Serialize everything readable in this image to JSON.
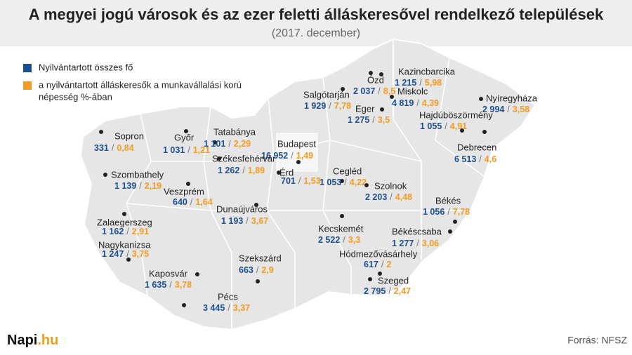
{
  "header": {
    "title": "A megyei jogú városok és az ezer feletti álláskeresővel rendelkező települések",
    "subtitle": "(2017. december)"
  },
  "legend": [
    {
      "label": [
        "Nyilvántartott összes fő"
      ],
      "color": "#1d4f91"
    },
    {
      "label": [
        "a nyilvántartott álláskeresők a munkavállalási korú",
        "népesség %-ában"
      ],
      "color": "#f39c22"
    }
  ],
  "separator": "/",
  "cities": [
    {
      "name": "Kazincbarcika",
      "count": "1 215",
      "share": "5,98"
    },
    {
      "name": "Ózd",
      "count": "2 037",
      "share": "8,5"
    },
    {
      "name": "Salgótarján",
      "count": "1 929",
      "share": "7,78"
    },
    {
      "name": "Miskolc",
      "count": "4 819",
      "share": "4,39"
    },
    {
      "name": "Nyíregyháza",
      "count": "2 994",
      "share": "3,58"
    },
    {
      "name": "Eger",
      "count": "1 275",
      "share": "3,5"
    },
    {
      "name": "Hajdúböszörmény",
      "count": "1 055",
      "share": "4,91"
    },
    {
      "name": "Sopron",
      "count": "331",
      "share": "0,84"
    },
    {
      "name": "Győr",
      "count": "1 031",
      "share": "1,21"
    },
    {
      "name": "Tatabánya",
      "count": "1 101",
      "share": "2,29"
    },
    {
      "name": "Budapest",
      "count": "16 952",
      "share": "1,49"
    },
    {
      "name": "Debrecen",
      "count": "6 513",
      "share": "4,6"
    },
    {
      "name": "Szombathely",
      "count": "1 139",
      "share": "2,19"
    },
    {
      "name": "Székesfehérvár",
      "count": "1 262",
      "share": "1,89"
    },
    {
      "name": "Érd",
      "count": "701",
      "share": "1,53"
    },
    {
      "name": "Cegléd",
      "count": "1 053",
      "share": "4,22"
    },
    {
      "name": "Szolnok",
      "count": "2 203",
      "share": "4,48"
    },
    {
      "name": "Veszprém",
      "count": "640",
      "share": "1,64"
    },
    {
      "name": "Dunaújváros",
      "count": "1 193",
      "share": "3,67"
    },
    {
      "name": "Békés",
      "count": "1 056",
      "share": "7,78"
    },
    {
      "name": "Zalaegerszeg",
      "count": "1 162",
      "share": "2,91"
    },
    {
      "name": "Kecskemét",
      "count": "2 522",
      "share": "3,3"
    },
    {
      "name": "Békéscsaba",
      "count": "1 277",
      "share": "3,06"
    },
    {
      "name": "Nagykanizsa",
      "count": "1 247",
      "share": "3,75"
    },
    {
      "name": "Hódmezővásárhely",
      "count": "617",
      "share": "2"
    },
    {
      "name": "Szekszárd",
      "count": "663",
      "share": "2,9"
    },
    {
      "name": "Kaposvár",
      "count": "1 635",
      "share": "3,78"
    },
    {
      "name": "Szeged",
      "count": "2 795",
      "share": "2,47"
    },
    {
      "name": "Pécs",
      "count": "3 445",
      "share": "3,37"
    }
  ],
  "brand": {
    "name": "Napi",
    "suffix": ".hu"
  },
  "source": "Forrás: NFSZ"
}
